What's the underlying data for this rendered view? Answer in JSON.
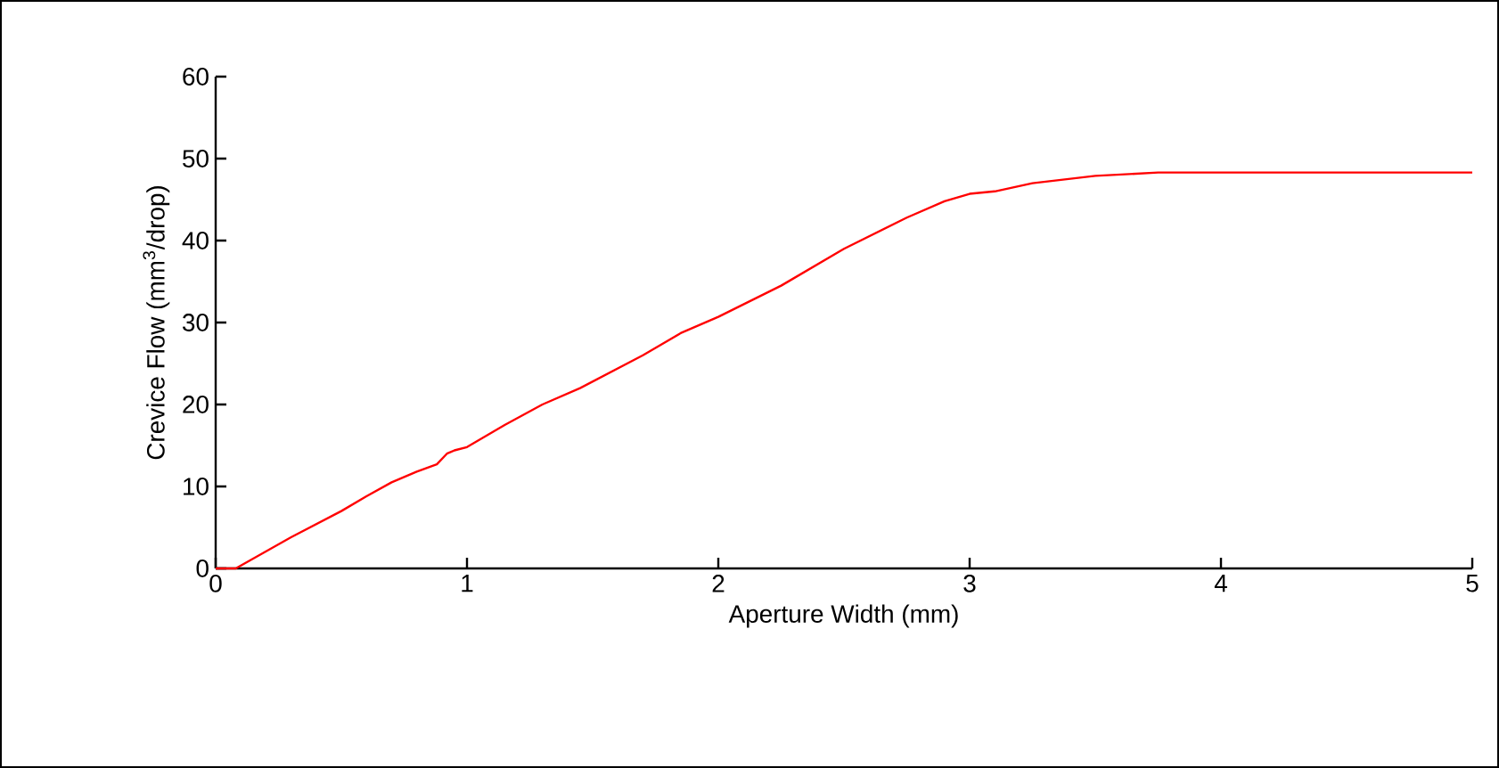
{
  "chart_data": {
    "type": "line",
    "xlabel": "Aperture Width (mm)",
    "ylabel": "Crevice Flow (mm$^{3}$/drop)",
    "xlim": [
      0,
      5
    ],
    "ylim": [
      0,
      60
    ],
    "xticks": [
      0,
      1,
      2,
      3,
      4,
      5
    ],
    "yticks": [
      0,
      10,
      20,
      30,
      40,
      50,
      60
    ],
    "grid": false,
    "marker": "none",
    "line_style": "solid",
    "series": [
      {
        "color": "#ff0000",
        "x": [
          0,
          0.08,
          0.3,
          0.5,
          0.6,
          0.7,
          0.8,
          0.88,
          0.92,
          0.95,
          1.0,
          1.15,
          1.3,
          1.45,
          1.7,
          1.85,
          2.0,
          2.25,
          2.5,
          2.75,
          2.9,
          3.0,
          3.1,
          3.25,
          3.5,
          3.75,
          4.0,
          5.0
        ],
        "values": [
          0,
          0,
          3.8,
          7,
          8.8,
          10.5,
          11.8,
          12.7,
          14,
          14.4,
          14.8,
          17.5,
          20,
          22,
          26,
          28.7,
          30.7,
          34.5,
          39,
          42.8,
          44.8,
          45.7,
          46,
          47,
          47.9,
          48.3,
          48.3,
          48.3
        ]
      }
    ]
  }
}
